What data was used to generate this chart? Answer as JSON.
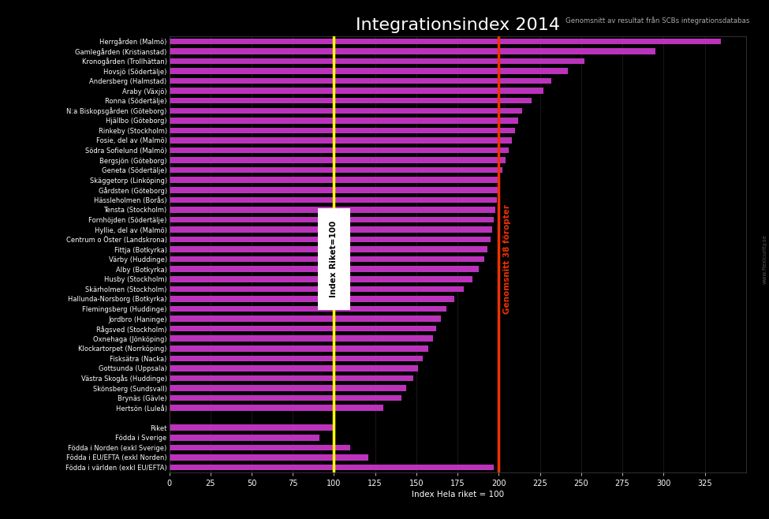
{
  "title": "Integrationsindex 2014",
  "subtitle": "Genomsnitt av resultat från SCBs integrationsdatabas",
  "xlabel": "Index Hela riket = 100",
  "bar_color": "#bb33bb",
  "bg_color": "#000000",
  "text_color": "#ffffff",
  "yellow_line": 100,
  "orange_line": 200,
  "yellow_label": "Index Riket=100",
  "orange_label": "Genomsnitt 38 förорter",
  "xlim": [
    0,
    350
  ],
  "xticks": [
    0,
    25,
    50,
    75,
    100,
    125,
    150,
    175,
    200,
    225,
    250,
    275,
    300,
    325
  ],
  "categories": [
    "Herrgården (Malmö)",
    "Gamlegården (Kristianstad)",
    "Kronogården (Trollhättan)",
    "Hovsjö (Södertälje)",
    "Andersberg (Halmstad)",
    "Araby (Växjö)",
    "Ronna (Södertälje)",
    "N:a Biskopsgården (Göteborg)",
    "Hjällbo (Göteborg)",
    "Rinkeby (Stockholm)",
    "Fosie, del av (Malmö)",
    "Södra Sofielund (Malmö)",
    "Bergsjön (Göteborg)",
    "Geneta (Södertälje)",
    "Skäggetorp (Linköping)",
    "Gårdsten (Göteborg)",
    "Hässleholmen (Borås)",
    "Tensta (Stockholm)",
    "Fornhöjden (Södertälje)",
    "Hyllie, del av (Malmö)",
    "Centrum o Öster (Landskrona)",
    "Fittja (Botkyrka)",
    "Värby (Huddinge)",
    "Alby (Botkyrka)",
    "Husby (Stockholm)",
    "Skärholmen (Stockholm)",
    "Hallunda-Norsborg (Botkyrka)",
    "Flemingsberg (Huddinge)",
    "Jordbro (Haninge)",
    "Rågsved (Stockholm)",
    "Oxnehaga (Jönköping)",
    "Klockartorpet (Norrköping)",
    "Fisksätra (Nacka)",
    "Gottsunda (Uppsala)",
    "Västra Skogås (Huddinge)",
    "Skönsberg (Sundsvall)",
    "Brynäs (Gävle)",
    "Hertsön (Luleå)",
    "",
    "Riket",
    "Födda i Sverige",
    "Födda i Norden (exkl Sverige)",
    "Födda i EU/EFTA (exkl Norden)",
    "Födda i världen (exkl EU/EFTA)"
  ],
  "values": [
    335,
    295,
    252,
    242,
    232,
    227,
    220,
    214,
    212,
    210,
    208,
    206,
    204,
    202,
    201,
    200,
    199,
    198,
    197,
    196,
    195,
    193,
    191,
    188,
    184,
    179,
    173,
    168,
    165,
    162,
    160,
    157,
    154,
    151,
    148,
    144,
    141,
    130,
    0,
    100,
    91,
    110,
    121,
    197
  ],
  "figsize": [
    9.75,
    6.58
  ],
  "dpi": 100
}
